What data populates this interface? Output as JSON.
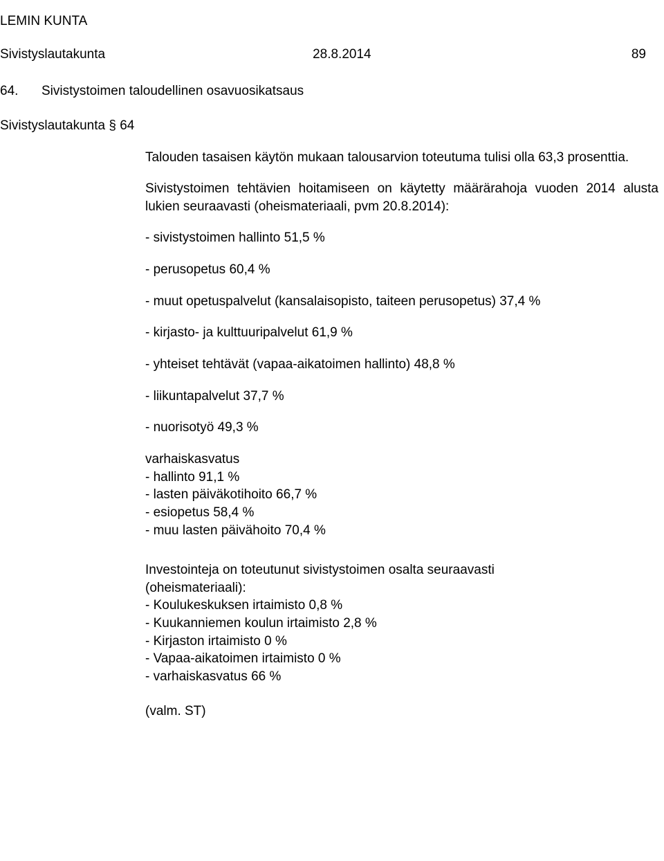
{
  "header": {
    "org": "LEMIN KUNTA",
    "board": "Sivistyslautakunta",
    "date": "28.8.2014",
    "page_num": "89"
  },
  "item": {
    "number": "64.",
    "title": "Sivistystoimen taloudellinen osavuosikatsaus"
  },
  "sub": "Sivistyslautakunta § 64",
  "p1": "Talouden tasaisen käytön mukaan talousarvion toteutuma tulisi olla 63,3 prosenttia.",
  "p2": "Sivistystoimen tehtävien hoitamiseen on käytetty määrärahoja vuoden 2014 alusta lukien seuraavasti (oheismateriaali, pvm 20.8.2014):",
  "bullets": [
    "- sivistystoimen hallinto 51,5 %",
    "- perusopetus 60,4 %",
    "- muut opetuspalvelut (kansalaisopisto, taiteen perusopetus) 37,4 %",
    "- kirjasto- ja kulttuuripalvelut 61,9 %",
    "- yhteiset tehtävät (vapaa-aikatoimen hallinto) 48,8 %",
    "- liikuntapalvelut 37,7 %",
    "- nuorisotyö 49,3 %"
  ],
  "varhais": {
    "heading": "varhaiskasvatus",
    "lines": [
      "- hallinto 91,1 %",
      "- lasten päiväkotihoito 66,7 %",
      "- esiopetus 58,4 %",
      "- muu lasten päivähoito 70,4 %"
    ]
  },
  "invest": {
    "intro1": "Investointeja on toteutunut sivistystoimen osalta seuraavasti",
    "intro2": "(oheismateriaali):",
    "lines": [
      "- Koulukeskuksen irtaimisto 0,8 %",
      "- Kuukanniemen koulun irtaimisto 2,8 %",
      "- Kirjaston irtaimisto 0 %",
      "- Vapaa-aikatoimen irtaimisto 0 %",
      "- varhaiskasvatus 66 %"
    ]
  },
  "footer": "(valm. ST)"
}
